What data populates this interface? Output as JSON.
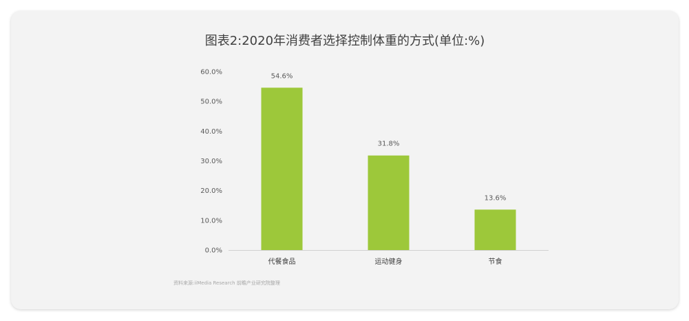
{
  "chart_data": {
    "type": "bar",
    "title": "图表2:2020年消费者选择控制体重的方式(单位:%)",
    "categories": [
      "代餐食品",
      "运动健身",
      "节食"
    ],
    "values": [
      54.6,
      31.8,
      13.6
    ],
    "value_labels": [
      "54.6%",
      "31.8%",
      "13.6%"
    ],
    "y_ticks": [
      0,
      10,
      20,
      30,
      40,
      50,
      60
    ],
    "y_tick_labels": [
      "0.0%",
      "10.0%",
      "20.0%",
      "30.0%",
      "40.0%",
      "50.0%",
      "60.0%"
    ],
    "ylim": [
      0,
      60
    ],
    "grid": false,
    "bar_color": "#9dc83a",
    "source": "资料来源:iiMedia Research  前瞻产业研究院整理"
  }
}
